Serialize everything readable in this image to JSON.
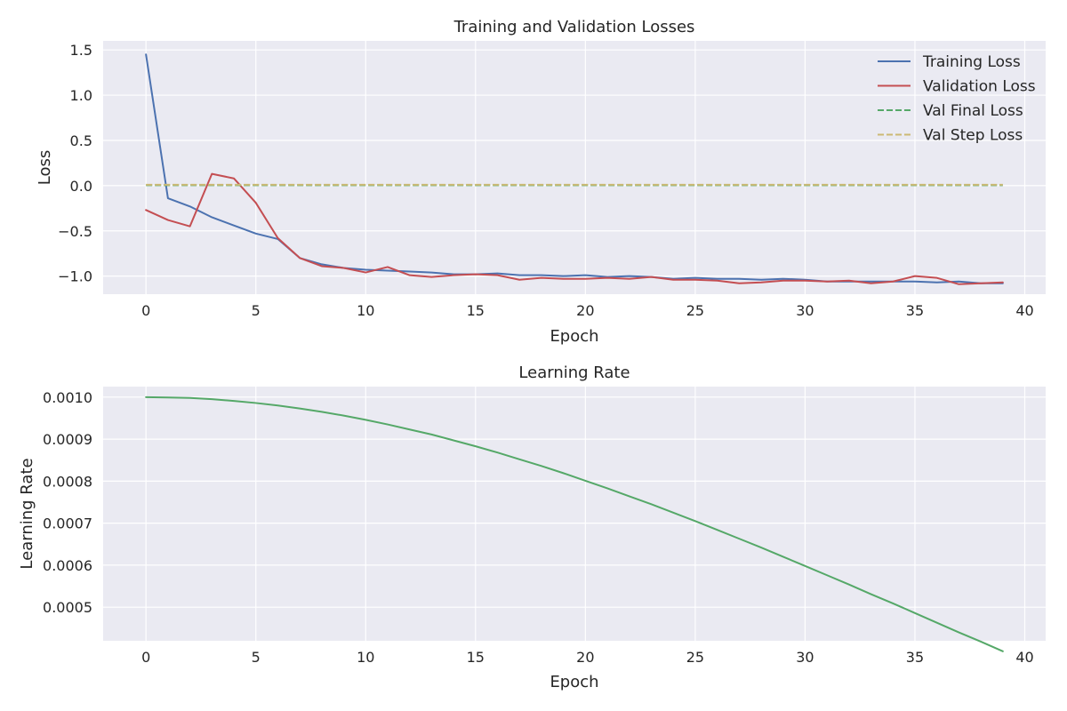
{
  "chart_data": [
    {
      "type": "line",
      "title": "Training and Validation Losses",
      "xlabel": "Epoch",
      "ylabel": "Loss",
      "xlim": [
        -1.95,
        40.95
      ],
      "ylim": [
        -1.2,
        1.6
      ],
      "xticks": [
        0,
        5,
        10,
        15,
        20,
        25,
        30,
        35,
        40
      ],
      "yticks": [
        1.5,
        1.0,
        0.5,
        0.0,
        -0.5,
        -1.0
      ],
      "ytick_labels": [
        "1.5",
        "1.0",
        "0.5",
        "0.0",
        "−0.5",
        "−1.0"
      ],
      "grid": true,
      "legend_position": "top-right",
      "x": [
        0,
        1,
        2,
        3,
        4,
        5,
        6,
        7,
        8,
        9,
        10,
        11,
        12,
        13,
        14,
        15,
        16,
        17,
        18,
        19,
        20,
        21,
        22,
        23,
        24,
        25,
        26,
        27,
        28,
        29,
        30,
        31,
        32,
        33,
        34,
        35,
        36,
        37,
        38,
        39
      ],
      "series": [
        {
          "name": "Training Loss",
          "color": "#4c72b0",
          "dash": "solid",
          "values": [
            1.45,
            -0.14,
            -0.23,
            -0.35,
            -0.44,
            -0.53,
            -0.59,
            -0.8,
            -0.87,
            -0.91,
            -0.93,
            -0.94,
            -0.95,
            -0.96,
            -0.98,
            -0.98,
            -0.97,
            -0.99,
            -0.99,
            -1.0,
            -0.99,
            -1.01,
            -1.0,
            -1.01,
            -1.03,
            -1.02,
            -1.03,
            -1.03,
            -1.04,
            -1.03,
            -1.04,
            -1.06,
            -1.06,
            -1.06,
            -1.06,
            -1.06,
            -1.07,
            -1.06,
            -1.08,
            -1.08
          ]
        },
        {
          "name": "Validation Loss",
          "color": "#c44e52",
          "dash": "solid",
          "values": [
            -0.27,
            -0.38,
            -0.45,
            0.13,
            0.08,
            -0.19,
            -0.58,
            -0.8,
            -0.89,
            -0.91,
            -0.96,
            -0.9,
            -0.99,
            -1.01,
            -0.99,
            -0.98,
            -0.99,
            -1.04,
            -1.02,
            -1.03,
            -1.03,
            -1.02,
            -1.03,
            -1.01,
            -1.04,
            -1.04,
            -1.05,
            -1.08,
            -1.07,
            -1.05,
            -1.05,
            -1.06,
            -1.05,
            -1.08,
            -1.06,
            -1.0,
            -1.02,
            -1.09,
            -1.08,
            -1.07
          ]
        },
        {
          "name": "Val Final Loss",
          "color": "#55a868",
          "dash": "dashed",
          "values": [
            0.005,
            0.005,
            0.005,
            0.005,
            0.005,
            0.005,
            0.005,
            0.005,
            0.005,
            0.005,
            0.005,
            0.005,
            0.005,
            0.005,
            0.005,
            0.005,
            0.005,
            0.005,
            0.005,
            0.005,
            0.005,
            0.005,
            0.005,
            0.005,
            0.005,
            0.005,
            0.005,
            0.005,
            0.005,
            0.005,
            0.005,
            0.005,
            0.005,
            0.005,
            0.005,
            0.005,
            0.005,
            0.005,
            0.005,
            0.005
          ]
        },
        {
          "name": "Val Step Loss",
          "color": "#ccb974",
          "dash": "dashed",
          "values": [
            0.01,
            0.01,
            0.01,
            0.01,
            0.01,
            0.01,
            0.01,
            0.01,
            0.01,
            0.01,
            0.01,
            0.01,
            0.01,
            0.01,
            0.01,
            0.01,
            0.01,
            0.01,
            0.01,
            0.01,
            0.01,
            0.01,
            0.01,
            0.01,
            0.01,
            0.01,
            0.01,
            0.01,
            0.01,
            0.01,
            0.01,
            0.01,
            0.01,
            0.01,
            0.01,
            0.01,
            0.01,
            0.01,
            0.01,
            0.01
          ]
        }
      ]
    },
    {
      "type": "line",
      "title": "Learning Rate",
      "xlabel": "Epoch",
      "ylabel": "Learning Rate",
      "xlim": [
        -1.95,
        40.95
      ],
      "ylim": [
        0.00042,
        0.001025
      ],
      "xticks": [
        0,
        5,
        10,
        15,
        20,
        25,
        30,
        35,
        40
      ],
      "yticks": [
        0.001,
        0.0009,
        0.0008,
        0.0007,
        0.0006,
        0.0005
      ],
      "ytick_labels": [
        "0.0010",
        "0.0009",
        "0.0008",
        "0.0007",
        "0.0006",
        "0.0005"
      ],
      "grid": true,
      "legend_position": "none",
      "x": [
        0,
        1,
        2,
        3,
        4,
        5,
        6,
        7,
        8,
        9,
        10,
        11,
        12,
        13,
        14,
        15,
        16,
        17,
        18,
        19,
        20,
        21,
        22,
        23,
        24,
        25,
        26,
        27,
        28,
        29,
        30,
        31,
        32,
        33,
        34,
        35,
        36,
        37,
        38,
        39
      ],
      "series": [
        {
          "color": "#55a868",
          "dash": "solid",
          "values": [
            0.001,
            0.000999,
            0.000998,
            0.000995,
            0.000991,
            0.000986,
            0.00098,
            0.000973,
            0.000965,
            0.000956,
            0.000946,
            0.000935,
            0.000923,
            0.000911,
            0.000897,
            0.000883,
            0.000868,
            0.000852,
            0.000836,
            0.000819,
            0.000801,
            0.000783,
            0.000764,
            0.000745,
            0.000725,
            0.000705,
            0.000684,
            0.000663,
            0.000642,
            0.00062,
            0.000598,
            0.000576,
            0.000554,
            0.000531,
            0.000509,
            0.000486,
            0.000463,
            0.00044,
            0.000418,
            0.000395
          ]
        }
      ]
    }
  ]
}
